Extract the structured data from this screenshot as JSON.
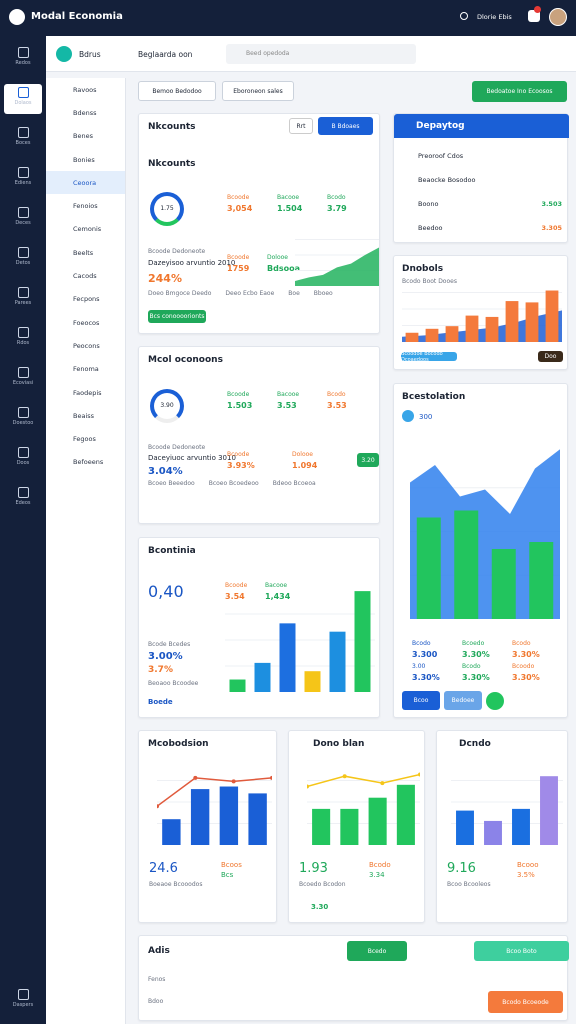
{
  "app": {
    "title": "Modal Economia",
    "user": "Dlorie Ebis"
  },
  "sidebar": [
    "Redos",
    "Dolaos",
    "Boces",
    "Ediens",
    "Deces",
    "Detos",
    "Parees",
    "Rdos",
    "Ecoviasi",
    "Doestoo",
    "Doos",
    "Edeos",
    "Daspers"
  ],
  "menu": [
    "Ravoos",
    "Bdenss",
    "Benes",
    "Bonies",
    "Ceoora",
    "Fenoios",
    "Cemonis",
    "Beelts",
    "Cacods",
    "Fecpons",
    "Foeocos",
    "Peocons",
    "Fenoma",
    "Faodepis",
    "Beaiss",
    "Fegoos",
    "Befoeens"
  ],
  "toolbar": {
    "workspace": "Bdrus",
    "view": "Beglaarda oon",
    "search": "Beed opedoda",
    "filter1": "Bemoo Bedodoo",
    "filter2": "Eboroneon sales",
    "action": "Bedoatoe Ino Ecoosos"
  },
  "cards": {
    "accounts": {
      "title": "Nkcounts",
      "btn1": "Rrt",
      "btn2": "B Bdoaes",
      "ring": "1.75",
      "stats": [
        [
          "Bcoode",
          "3,054"
        ],
        [
          "Bacooe",
          "1.504"
        ],
        [
          "Bcodo",
          "3.79"
        ]
      ],
      "sub": "Bcoode Dedoneote",
      "sub2": "Dazeyisoo arvuntio 2010",
      "pct": "244%",
      "mid": [
        [
          "Bcoode",
          "1759"
        ],
        [
          "Dolooe",
          "Bdsooa"
        ]
      ],
      "foot": [
        "Doeo Bmgoce Deedo",
        "Deeo Ecbo Eaoe",
        "Boe",
        "Bboeo"
      ],
      "action": "Bcs conoooorionts"
    },
    "markets": {
      "title": "Mcol oconoons",
      "ring": "3.90",
      "stats": [
        [
          "Bcoode",
          "1.503"
        ],
        [
          "Bacooe",
          "3.53"
        ],
        [
          "Bcodo",
          "3.53"
        ]
      ],
      "sub": "Bcoode Dedoneote",
      "sub2": "Daceyiuoc arvuntio 3010",
      "pct": "3.04%",
      "mid": [
        [
          "Bcoode",
          "3.93%"
        ],
        [
          "Dolooe",
          "1.094"
        ]
      ],
      "badge": "3.20",
      "foot": [
        "Bcoeo Beeedoo",
        "Bcoeo Bcoedeoo",
        "Bdeoo Bcoeoa"
      ]
    },
    "economia": {
      "title": "Bcontinia",
      "big": "0,40",
      "stats": [
        [
          "Bcoode",
          "3.54"
        ],
        [
          "Bacooe",
          "1,434"
        ]
      ],
      "sub": "Bcode Bcedes",
      "pct": "3.00%",
      "pct2": "3.7%",
      "foot": "Beoaoo Bcoodee",
      "tag": "Boede"
    },
    "deploy": {
      "title": "Depaytog",
      "rows": [
        [
          "Preoroof Cdos",
          ""
        ],
        [
          "Beaocke Bosodoo",
          ""
        ],
        [
          "Boono",
          "3.503"
        ],
        [
          "Beedoo",
          "3.305"
        ]
      ]
    },
    "dnobols": {
      "title": "Dnobols",
      "sub": "Bcodo Boot Dooes",
      "tag": "Bcoodoe Bocodo Dcoaedoos",
      "tag2": "Doo"
    },
    "dest": {
      "title": "Bcestolation",
      "sub": "300",
      "stats": [
        [
          "Bcodo",
          "3.300"
        ],
        [
          "Bcoedo",
          "3.30%"
        ],
        [
          "Bcodo",
          "3.30%"
        ],
        [
          "3.00",
          "3.30%"
        ],
        [
          "Bcodo",
          "3.30%"
        ],
        [
          "Bcoodo",
          "3.30%"
        ]
      ],
      "btn1": "Bcoo",
      "btn2": "Bedoee"
    },
    "mcob": {
      "title": "Mcobodsion",
      "big": "24.6",
      "s1": "Bcoos",
      "s2": "Bcs",
      "sub": "Boeaoe Bcooodos"
    },
    "dono": {
      "title": "Dono blan",
      "big": "1.93",
      "s1": "Bcodo",
      "s2": "3.34",
      "sub": "Bcoedo Bcodon",
      "foot": "3.30"
    },
    "dcndo": {
      "title": "Dcndo",
      "big": "9.16",
      "s1": "Bcooo",
      "s2": "3.5%",
      "sub": "Bcoo Bcooleos"
    },
    "adis": {
      "title": "Adis",
      "btn1": "Bcedo",
      "btn2": "Bcoo Boto",
      "row1": "Fenos",
      "row2": "Bdoo",
      "btn3": "Bcodo Bcoeode"
    }
  },
  "charts": [
    {
      "type": "area",
      "ylim": [
        0,
        100
      ],
      "series": [
        {
          "type": "area",
          "color": "#22b35e",
          "values": [
            8,
            14,
            18,
            30,
            36,
            50,
            62
          ]
        }
      ]
    },
    {
      "type": "bar",
      "ylim": [
        0,
        100
      ],
      "series": [
        {
          "type": "bar",
          "colors": [
            "#22c55e",
            "#1d8fe0",
            "#1d6fe0",
            "#f5c518",
            "#1d8fe0",
            "#22c55e"
          ],
          "values": [
            12,
            28,
            66,
            20,
            58,
            97
          ]
        }
      ]
    },
    {
      "type": "combo",
      "ylim": [
        0,
        100
      ],
      "series": [
        {
          "type": "area",
          "color": "#1d5fd6",
          "values": [
            8,
            10,
            14,
            18,
            22,
            30,
            40,
            48
          ]
        },
        {
          "type": "bar",
          "color": "#f47a3c",
          "values": [
            14,
            20,
            24,
            40,
            38,
            62,
            60,
            78
          ]
        }
      ]
    },
    {
      "type": "combo",
      "ylim": [
        0,
        100
      ],
      "series": [
        {
          "type": "area",
          "color": "#2f80ed",
          "values": [
            78,
            88,
            70,
            74,
            60,
            86,
            97
          ]
        },
        {
          "type": "bar",
          "color": "#22c55e",
          "values": [
            58,
            62,
            40,
            44
          ]
        }
      ]
    },
    {
      "type": "combo",
      "ylim": [
        0,
        100
      ],
      "series": [
        {
          "type": "bar",
          "color": "#1a5fd6",
          "values": [
            30,
            65,
            68,
            60
          ]
        },
        {
          "type": "line",
          "color": "#e05a3c",
          "values": [
            45,
            78,
            74,
            78
          ]
        }
      ]
    },
    {
      "type": "combo",
      "ylim": [
        0,
        100
      ],
      "series": [
        {
          "type": "bar",
          "color": "#22c55e",
          "values": [
            42,
            42,
            55,
            70
          ]
        },
        {
          "type": "line",
          "color": "#f5c518",
          "values": [
            68,
            80,
            72,
            82
          ]
        }
      ]
    },
    {
      "type": "bar",
      "ylim": [
        0,
        100
      ],
      "series": [
        {
          "type": "bar",
          "colors": [
            "#1a6fe0",
            "#8b83e8",
            "#1a6fe0",
            "#a08ae8"
          ],
          "values": [
            40,
            28,
            42,
            80
          ]
        }
      ]
    }
  ]
}
